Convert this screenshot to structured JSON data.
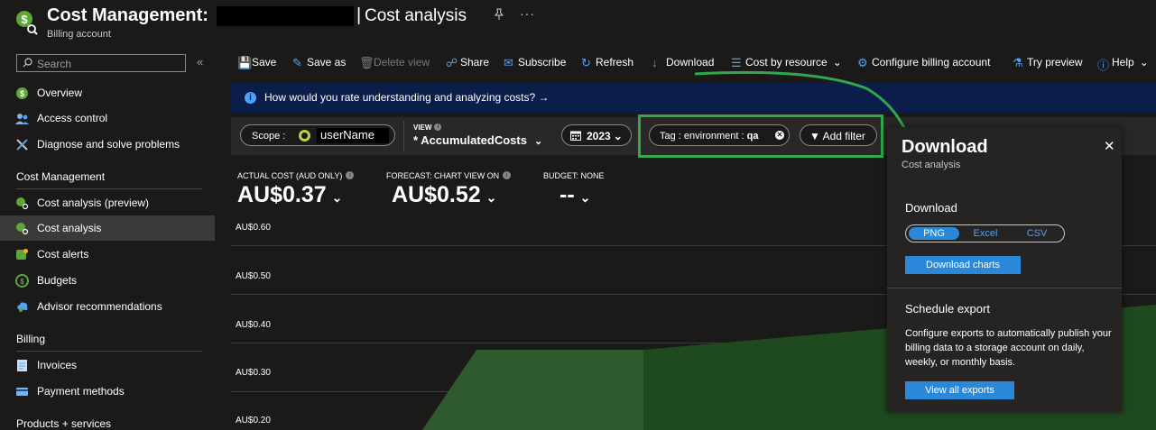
{
  "header": {
    "title": "Cost Management:",
    "divider": "|",
    "page_title": "Cost analysis",
    "subtitle": "Billing account",
    "more": "···"
  },
  "sidebar": {
    "search_placeholder": "Search",
    "collapse": "«",
    "items_top": [
      {
        "label": "Overview",
        "icon": "overview-icon"
      },
      {
        "label": "Access control",
        "icon": "access-control-icon"
      },
      {
        "label": "Diagnose and solve problems",
        "icon": "diagnose-icon"
      }
    ],
    "section_cost": "Cost Management",
    "items_cost": [
      {
        "label": "Cost analysis (preview)",
        "icon": "cost-analysis-preview-icon"
      },
      {
        "label": "Cost analysis",
        "icon": "cost-analysis-icon",
        "active": true
      },
      {
        "label": "Cost alerts",
        "icon": "cost-alerts-icon"
      },
      {
        "label": "Budgets",
        "icon": "budgets-icon"
      },
      {
        "label": "Advisor recommendations",
        "icon": "advisor-icon"
      }
    ],
    "section_billing": "Billing",
    "items_billing": [
      {
        "label": "Invoices",
        "icon": "invoices-icon"
      },
      {
        "label": "Payment methods",
        "icon": "payment-methods-icon"
      }
    ],
    "section_products": "Products + services"
  },
  "toolbar": {
    "save": "Save",
    "save_as": "Save as",
    "delete_view": "Delete view",
    "share": "Share",
    "subscribe": "Subscribe",
    "refresh": "Refresh",
    "download": "Download",
    "cost_by_resource": "Cost by resource",
    "configure": "Configure billing account",
    "try_preview": "Try preview",
    "help": "Help"
  },
  "banner": {
    "text": "How would you rate understanding and analyzing costs? →"
  },
  "filters": {
    "scope_label": "Scope :",
    "scope_value": "userName",
    "view_label": "VIEW",
    "view_value": "* AccumulatedCosts",
    "year": "2023",
    "tag_key": "Tag : environment :",
    "tag_value": "qa",
    "add_filter": "Add filter"
  },
  "kpis": {
    "actual_label": "ACTUAL COST (AUD ONLY)",
    "actual_value": "AU$0.37",
    "forecast_label": "FORECAST: CHART VIEW ON",
    "forecast_value": "AU$0.52",
    "budget_label": "BUDGET: NONE",
    "budget_value": "--"
  },
  "chart_data": {
    "type": "area",
    "y_ticks": [
      "AU$0.60",
      "AU$0.50",
      "AU$0.40",
      "AU$0.30",
      "AU$0.20"
    ],
    "ylim": [
      0.2,
      0.6
    ],
    "series": [
      {
        "kind": "actual",
        "color": "#2e5a2e"
      },
      {
        "kind": "forecast",
        "color": "#1f4a20"
      }
    ]
  },
  "download_panel": {
    "title": "Download",
    "subtitle": "Cost analysis",
    "close": "✕",
    "download_heading": "Download",
    "formats": [
      "PNG",
      "Excel",
      "CSV"
    ],
    "selected_format": "PNG",
    "download_button": "Download charts",
    "schedule_heading": "Schedule export",
    "schedule_desc": "Configure exports to automatically publish your billing data to a storage account on daily, weekly, or monthly basis.",
    "view_exports_button": "View all exports"
  },
  "colors": {
    "accent": "#2b88d8",
    "highlight": "#2fa84f",
    "banner": "#0b1e4a"
  }
}
